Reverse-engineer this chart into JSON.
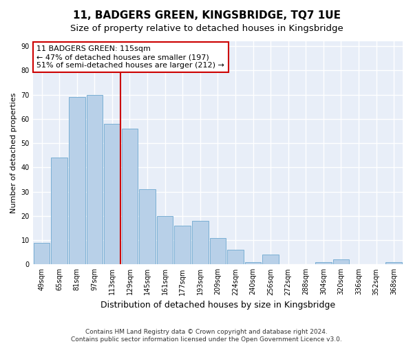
{
  "title": "11, BADGERS GREEN, KINGSBRIDGE, TQ7 1UE",
  "subtitle": "Size of property relative to detached houses in Kingsbridge",
  "xlabel": "Distribution of detached houses by size in Kingsbridge",
  "ylabel": "Number of detached properties",
  "categories": [
    "49sqm",
    "65sqm",
    "81sqm",
    "97sqm",
    "113sqm",
    "129sqm",
    "145sqm",
    "161sqm",
    "177sqm",
    "193sqm",
    "209sqm",
    "224sqm",
    "240sqm",
    "256sqm",
    "272sqm",
    "288sqm",
    "304sqm",
    "320sqm",
    "336sqm",
    "352sqm",
    "368sqm"
  ],
  "values": [
    9,
    44,
    69,
    70,
    58,
    56,
    31,
    20,
    16,
    18,
    11,
    6,
    1,
    4,
    0,
    0,
    1,
    2,
    0,
    0,
    1
  ],
  "bar_color": "#b8d0e8",
  "bar_edge_color": "#7aafd4",
  "vline_x_index": 4,
  "vline_color": "#cc0000",
  "annotation_text": "11 BADGERS GREEN: 115sqm\n← 47% of detached houses are smaller (197)\n51% of semi-detached houses are larger (212) →",
  "annotation_box_color": "#ffffff",
  "annotation_box_edge": "#cc0000",
  "ylim": [
    0,
    92
  ],
  "yticks": [
    0,
    10,
    20,
    30,
    40,
    50,
    60,
    70,
    80,
    90
  ],
  "background_color": "#e8eef8",
  "grid_color": "#ffffff",
  "fig_background": "#ffffff",
  "footer": "Contains HM Land Registry data © Crown copyright and database right 2024.\nContains public sector information licensed under the Open Government Licence v3.0.",
  "title_fontsize": 11,
  "subtitle_fontsize": 9.5,
  "xlabel_fontsize": 9,
  "ylabel_fontsize": 8,
  "tick_fontsize": 7,
  "annotation_fontsize": 8,
  "footer_fontsize": 6.5
}
